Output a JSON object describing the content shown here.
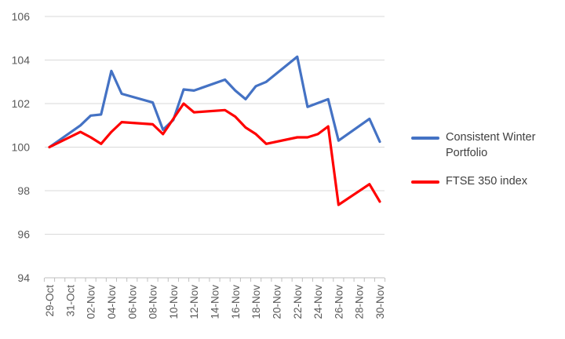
{
  "chart_data": {
    "type": "line",
    "title": "",
    "xlabel": "",
    "ylabel": "",
    "ylim": [
      94,
      106
    ],
    "yticks": [
      94,
      96,
      98,
      100,
      102,
      104,
      106
    ],
    "grid": "horizontal",
    "legend_position": "right",
    "x": [
      "29-Oct",
      "30-Oct",
      "31-Oct",
      "01-Nov",
      "02-Nov",
      "03-Nov",
      "04-Nov",
      "05-Nov",
      "06-Nov",
      "07-Nov",
      "08-Nov",
      "09-Nov",
      "10-Nov",
      "11-Nov",
      "12-Nov",
      "13-Nov",
      "14-Nov",
      "15-Nov",
      "16-Nov",
      "17-Nov",
      "18-Nov",
      "19-Nov",
      "20-Nov",
      "21-Nov",
      "22-Nov",
      "23-Nov",
      "24-Nov",
      "25-Nov",
      "26-Nov",
      "27-Nov",
      "28-Nov",
      "29-Nov",
      "30-Nov"
    ],
    "x_tick_labels": [
      "29-Oct",
      "31-Oct",
      "02-Nov",
      "04-Nov",
      "06-Nov",
      "08-Nov",
      "10-Nov",
      "12-Nov",
      "14-Nov",
      "16-Nov",
      "18-Nov",
      "20-Nov",
      "22-Nov",
      "24-Nov",
      "26-Nov",
      "28-Nov",
      "30-Nov"
    ],
    "series": [
      {
        "name": "Consistent Winter Portfolio",
        "color": "#4472C4",
        "points": [
          [
            "29-Oct",
            100.0
          ],
          [
            "01-Nov",
            101.0
          ],
          [
            "02-Nov",
            101.45
          ],
          [
            "03-Nov",
            101.5
          ],
          [
            "04-Nov",
            103.5
          ],
          [
            "05-Nov",
            102.45
          ],
          [
            "08-Nov",
            102.05
          ],
          [
            "09-Nov",
            100.8
          ],
          [
            "10-Nov",
            101.25
          ],
          [
            "11-Nov",
            102.65
          ],
          [
            "12-Nov",
            102.6
          ],
          [
            "15-Nov",
            103.1
          ],
          [
            "16-Nov",
            102.6
          ],
          [
            "17-Nov",
            102.2
          ],
          [
            "18-Nov",
            102.8
          ],
          [
            "19-Nov",
            103.0
          ],
          [
            "22-Nov",
            104.15
          ],
          [
            "23-Nov",
            101.85
          ],
          [
            "25-Nov",
            102.2
          ],
          [
            "26-Nov",
            100.3
          ],
          [
            "29-Nov",
            101.3
          ],
          [
            "30-Nov",
            100.25
          ]
        ]
      },
      {
        "name": "FTSE 350 index",
        "color": "#FF0000",
        "points": [
          [
            "29-Oct",
            100.0
          ],
          [
            "01-Nov",
            100.7
          ],
          [
            "02-Nov",
            100.45
          ],
          [
            "03-Nov",
            100.15
          ],
          [
            "04-Nov",
            100.7
          ],
          [
            "05-Nov",
            101.15
          ],
          [
            "08-Nov",
            101.05
          ],
          [
            "09-Nov",
            100.6
          ],
          [
            "11-Nov",
            102.0
          ],
          [
            "12-Nov",
            101.6
          ],
          [
            "15-Nov",
            101.7
          ],
          [
            "16-Nov",
            101.4
          ],
          [
            "17-Nov",
            100.9
          ],
          [
            "18-Nov",
            100.6
          ],
          [
            "19-Nov",
            100.15
          ],
          [
            "22-Nov",
            100.45
          ],
          [
            "23-Nov",
            100.45
          ],
          [
            "24-Nov",
            100.6
          ],
          [
            "25-Nov",
            100.95
          ],
          [
            "26-Nov",
            97.35
          ],
          [
            "29-Nov",
            98.3
          ],
          [
            "30-Nov",
            97.5
          ]
        ]
      }
    ]
  }
}
